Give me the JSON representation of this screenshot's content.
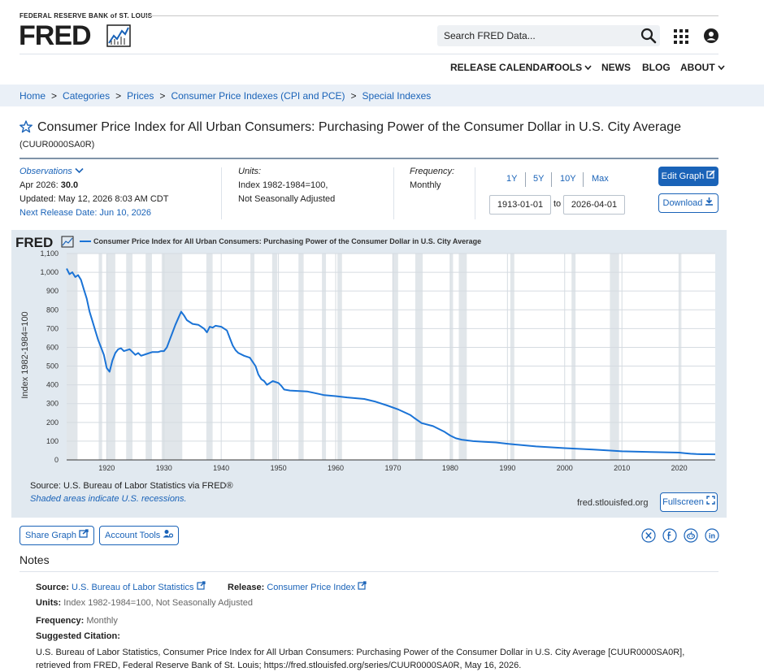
{
  "header": {
    "org": "FEDERAL RESERVE BANK of ST. LOUIS",
    "logo": "FRED",
    "search_placeholder": "Search FRED Data...",
    "nav": [
      "RELEASE CALENDAR",
      "TOOLS",
      "NEWS",
      "BLOG",
      "ABOUT"
    ],
    "icons": [
      "search-icon",
      "apps-grid-icon",
      "user-account-icon",
      "chevron-down-icon"
    ]
  },
  "breadcrumb": [
    "Home",
    "Categories",
    "Prices",
    "Consumer Price Indexes (CPI and PCE)",
    "Special Indexes"
  ],
  "series": {
    "title": "Consumer Price Index for All Urban Consumers: Purchasing Power of the Consumer Dollar in U.S. City Average",
    "id": "(CUUR0000SA0R)"
  },
  "observations": {
    "label": "Observations",
    "latest_label": "Apr 2026:",
    "latest_value": "30.0",
    "updated": "Updated: May 12, 2026 8:03 AM CDT",
    "next_release": "Next Release Date: Jun 10, 2026"
  },
  "units": {
    "label": "Units:",
    "line1": "Index 1982-1984=100,",
    "line2": "Not Seasonally Adjusted"
  },
  "frequency": {
    "label": "Frequency:",
    "value": "Monthly"
  },
  "range": {
    "buttons": [
      "1Y",
      "5Y",
      "10Y",
      "Max"
    ],
    "start": "1913-01-01",
    "to": "to",
    "end": "2026-04-01"
  },
  "actions": {
    "edit_graph": "Edit Graph",
    "download": "Download"
  },
  "chart_data": {
    "type": "line",
    "title": "Consumer Price Index for All Urban Consumers: Purchasing Power of the Consumer Dollar in U.S. City Average",
    "ylabel": "Index 1982-1984=100",
    "xlabel": "",
    "xlim": [
      1913,
      2026.3
    ],
    "ylim": [
      0,
      1100
    ],
    "yticks": [
      0,
      100,
      200,
      300,
      400,
      500,
      600,
      700,
      800,
      900,
      1000,
      1100
    ],
    "ytick_labels": [
      "0",
      "100",
      "200",
      "300",
      "400",
      "500",
      "600",
      "700",
      "800",
      "900",
      "1,000",
      "1,100"
    ],
    "xticks": [
      1920,
      1930,
      1940,
      1950,
      1960,
      1970,
      1980,
      1990,
      2000,
      2010,
      2020
    ],
    "grid": true,
    "legend_position": "top-left",
    "series": [
      {
        "name": "Consumer Price Index for All Urban Consumers: Purchasing Power of the Consumer Dollar in U.S. City Average",
        "color": "#1a73d6",
        "x": [
          1913,
          1913.5,
          1914,
          1914.5,
          1915,
          1915.5,
          1916,
          1916.5,
          1917,
          1917.5,
          1918,
          1918.5,
          1919,
          1919.5,
          1920,
          1920.5,
          1921,
          1921.5,
          1922,
          1922.5,
          1923,
          1923.5,
          1924,
          1924.5,
          1925,
          1925.5,
          1926,
          1927,
          1928,
          1929,
          1929.5,
          1930,
          1930.5,
          1931,
          1931.5,
          1932,
          1932.5,
          1933,
          1933.5,
          1934,
          1935,
          1936,
          1937,
          1937.5,
          1938,
          1938.5,
          1939,
          1940,
          1941,
          1941.5,
          1942,
          1942.5,
          1943,
          1944,
          1945,
          1946,
          1946.5,
          1947,
          1947.5,
          1948,
          1948.5,
          1949,
          1950,
          1950.5,
          1951,
          1952,
          1953,
          1955,
          1957,
          1958,
          1960,
          1962,
          1965,
          1967,
          1969,
          1971,
          1973,
          1974,
          1975,
          1977,
          1978,
          1979,
          1980,
          1981,
          1982,
          1984,
          1986,
          1988,
          1990,
          1995,
          2000,
          2005,
          2008,
          2010,
          2015,
          2020,
          2021,
          2022,
          2023,
          2024,
          2025,
          2026.3
        ],
        "y": [
          1020,
          990,
          1000,
          975,
          985,
          960,
          910,
          860,
          790,
          740,
          690,
          640,
          600,
          560,
          490,
          470,
          530,
          570,
          590,
          595,
          580,
          585,
          590,
          575,
          560,
          570,
          555,
          565,
          575,
          575,
          580,
          580,
          600,
          640,
          680,
          720,
          755,
          790,
          770,
          745,
          725,
          720,
          700,
          680,
          710,
          705,
          715,
          710,
          690,
          650,
          610,
          585,
          570,
          555,
          545,
          500,
          455,
          430,
          420,
          400,
          410,
          420,
          410,
          395,
          375,
          370,
          368,
          365,
          352,
          345,
          340,
          333,
          325,
          310,
          290,
          268,
          240,
          218,
          196,
          180,
          165,
          150,
          130,
          115,
          108,
          100,
          96,
          93,
          86,
          72,
          63,
          55,
          50,
          46,
          42,
          39,
          36,
          33,
          31,
          30.5,
          30.2,
          30
        ]
      }
    ],
    "recessions": [
      [
        1913.0,
        1914.9
      ],
      [
        1918.6,
        1919.2
      ],
      [
        1920.0,
        1921.5
      ],
      [
        1923.4,
        1924.5
      ],
      [
        1926.8,
        1927.9
      ],
      [
        1929.6,
        1933.2
      ],
      [
        1937.4,
        1938.5
      ],
      [
        1945.1,
        1945.8
      ],
      [
        1948.9,
        1949.8
      ],
      [
        1953.5,
        1954.4
      ],
      [
        1957.6,
        1958.3
      ],
      [
        1960.3,
        1961.1
      ],
      [
        1969.9,
        1970.9
      ],
      [
        1973.9,
        1975.2
      ],
      [
        1980.0,
        1980.5
      ],
      [
        1981.5,
        1982.9
      ],
      [
        1990.5,
        1991.2
      ],
      [
        2001.2,
        2001.9
      ],
      [
        2007.9,
        2009.5
      ],
      [
        2020.1,
        2020.3
      ]
    ]
  },
  "chart_footer": {
    "source": "Source: U.S. Bureau of Labor Statistics via FRED®",
    "note": "Shaded areas indicate U.S. recessions.",
    "site": "fred.stlouisfed.org",
    "fullscreen": "Fullscreen"
  },
  "tools": {
    "share": "Share Graph",
    "account": "Account Tools"
  },
  "social_icons": [
    "x-icon",
    "facebook-icon",
    "reddit-icon",
    "linkedin-icon"
  ],
  "notes": {
    "title": "Notes",
    "source_label": "Source:",
    "source_value": "U.S. Bureau of Labor Statistics",
    "release_label": "Release:",
    "release_value": "Consumer Price Index",
    "units_label": "Units:",
    "units_value": "Index 1982-1984=100, Not Seasonally Adjusted",
    "frequency_label": "Frequency:",
    "frequency_value": "Monthly",
    "citation_label": "Suggested Citation:",
    "citation_text": "U.S. Bureau of Labor Statistics, Consumer Price Index for All Urban Consumers: Purchasing Power of the Consumer Dollar in U.S. City Average [CUUR0000SA0R], retrieved from FRED, Federal Reserve Bank of St. Louis; https://fred.stlouisfed.org/series/CUUR0000SA0R, May 16, 2026."
  }
}
